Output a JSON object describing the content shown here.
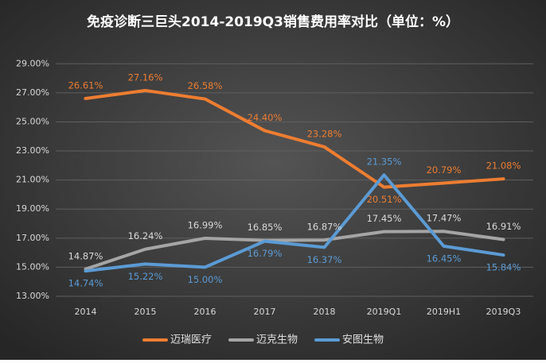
{
  "chart_data": {
    "type": "line",
    "title": "免疫诊断三巨头2014-2019Q3销售费用率对比（单位：%）",
    "categories": [
      "2014",
      "2015",
      "2016",
      "2017",
      "2018",
      "2019Q1",
      "2019H1",
      "2019Q3"
    ],
    "series": [
      {
        "name": "迈瑞医疗",
        "color": "#ed7d31",
        "values": [
          26.61,
          27.16,
          26.58,
          24.4,
          23.28,
          20.51,
          20.79,
          21.08
        ],
        "value_labels": [
          "26.61%",
          "27.16%",
          "26.58%",
          "24.40%",
          "23.28%",
          "20.51%",
          "20.79%",
          "21.08%"
        ]
      },
      {
        "name": "迈克生物",
        "color": "#a5a5a5",
        "values": [
          14.87,
          16.24,
          16.99,
          16.85,
          16.87,
          17.45,
          17.47,
          16.91
        ],
        "value_labels": [
          "14.87%",
          "16.24%",
          "16.99%",
          "16.85%",
          "16.87%",
          "17.45%",
          "17.47%",
          "16.91%"
        ]
      },
      {
        "name": "安图生物",
        "color": "#5b9bd5",
        "values": [
          14.74,
          15.22,
          15.0,
          16.79,
          16.37,
          21.35,
          16.45,
          15.84
        ],
        "value_labels": [
          "14.74%",
          "15.22%",
          "15.00%",
          "16.79%",
          "16.37%",
          "21.35%",
          "16.45%",
          "15.84%"
        ]
      }
    ],
    "ylim": [
      13,
      30
    ],
    "yticks": [
      {
        "value": 13,
        "label": "13.00%"
      },
      {
        "value": 15,
        "label": "15.00%"
      },
      {
        "value": 17,
        "label": "17.00%"
      },
      {
        "value": 19,
        "label": "19.00%"
      },
      {
        "value": 21,
        "label": "21.00%"
      },
      {
        "value": 23,
        "label": "23.00%"
      },
      {
        "value": 25,
        "label": "25.00%"
      },
      {
        "value": 27,
        "label": "27.00%"
      },
      {
        "value": 29,
        "label": "29.00%"
      }
    ],
    "grid": true
  }
}
